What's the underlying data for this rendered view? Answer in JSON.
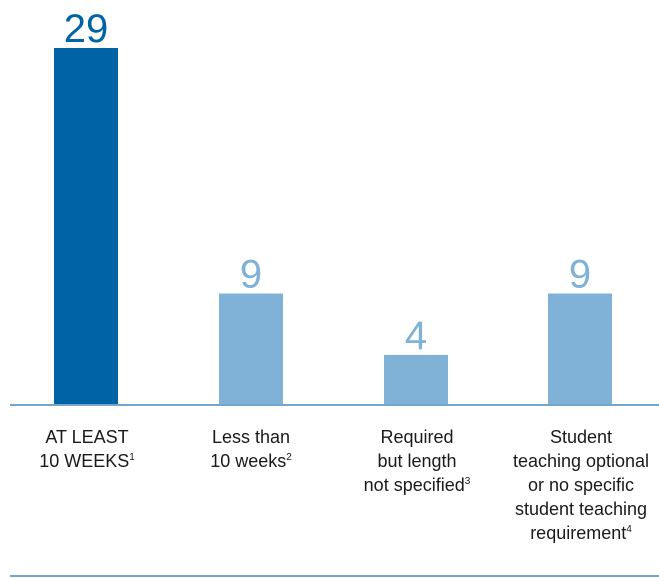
{
  "chart_data": {
    "type": "bar",
    "categories": [
      {
        "line1": "AT LEAST",
        "line2": "10 WEEKS",
        "sup": "1"
      },
      {
        "line1": "Less than",
        "line2": "10 weeks",
        "sup": "2"
      },
      {
        "line1": "Required",
        "line2": "but length",
        "line3": "not specified",
        "sup": "3"
      },
      {
        "line1": "Student",
        "line2": "teaching optional",
        "line3": "or no specific",
        "line4": "student teaching",
        "line5": "requirement",
        "sup": "4"
      }
    ],
    "values": [
      29,
      9,
      4,
      9
    ],
    "value_labels": [
      "29",
      "9",
      "4",
      "9"
    ],
    "ylim": [
      0,
      29
    ],
    "colors": {
      "highlight": "#0063a5",
      "default": "#7fb2d6",
      "axis": "#4a86b8"
    },
    "title": "",
    "xlabel": "",
    "ylabel": ""
  }
}
